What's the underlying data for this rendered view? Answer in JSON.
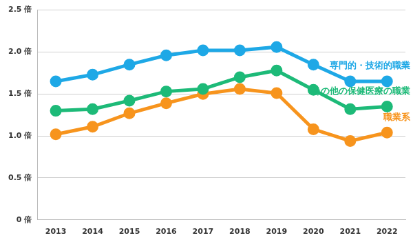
{
  "chart_data": {
    "type": "line",
    "categories": [
      "2013",
      "2014",
      "2015",
      "2016",
      "2017",
      "2018",
      "2019",
      "2020",
      "2021",
      "2022"
    ],
    "series": [
      {
        "name": "専門的・技術的職業",
        "color": "#1ea8e6",
        "marker": "circle",
        "values": [
          1.65,
          1.73,
          1.85,
          1.96,
          2.02,
          2.02,
          2.06,
          1.85,
          1.65,
          1.65
        ]
      },
      {
        "name": "その他の保健医療の職業",
        "color": "#1dba78",
        "marker": "circle",
        "values": [
          1.3,
          1.32,
          1.42,
          1.53,
          1.56,
          1.7,
          1.78,
          1.55,
          1.32,
          1.35
        ]
      },
      {
        "name": "職業系",
        "color": "#f7941d",
        "marker": "circle",
        "values": [
          1.02,
          1.11,
          1.27,
          1.39,
          1.5,
          1.56,
          1.51,
          1.08,
          0.94,
          1.04
        ]
      }
    ],
    "ylim": [
      0,
      2.5
    ],
    "yticks": [
      {
        "value": 0,
        "label": "0 倍"
      },
      {
        "value": 0.5,
        "label": "0.5 倍"
      },
      {
        "value": 1,
        "label": "1.0 倍"
      },
      {
        "value": 1.5,
        "label": "1.5 倍"
      },
      {
        "value": 2,
        "label": "2.0 倍"
      },
      {
        "value": 2.5,
        "label": "2.5 倍"
      }
    ],
    "grid": true,
    "legend": "none"
  }
}
